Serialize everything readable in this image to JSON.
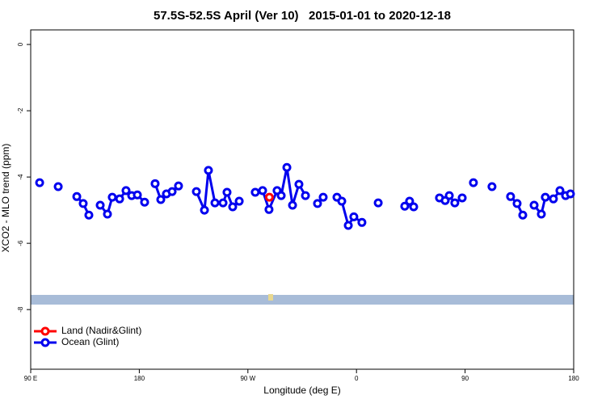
{
  "chart_data": {
    "type": "line",
    "title": "57.5S-52.5S April (Ver 10)   2015-01-01 to 2020-12-18",
    "x_label": "Longitude (deg E)",
    "y_label": "XCO2 - MLO trend (ppm)",
    "xlim": [
      90,
      540
    ],
    "xticks": [
      {
        "value": 90,
        "label": "90 E"
      },
      180,
      {
        "value": 270,
        "label": "90 W"
      },
      {
        "value": 360,
        "label": "0"
      },
      {
        "value": 450,
        "label": "90"
      },
      {
        "value": 540,
        "label": "180"
      }
    ],
    "ylim": [
      -9.8,
      0.44
    ],
    "yticks": [
      0,
      -2,
      -4,
      -6,
      -8
    ],
    "legend": "bottom-left",
    "series": [
      {
        "name": "Land (Nadir&Glint)",
        "color": "#ff0000",
        "x": [
          287.8
        ],
        "values": [
          -4.61
        ]
      },
      {
        "name": "Ocean (Glint)",
        "color": "#0000ee",
        "x": [
          97.4,
          null,
          112.8,
          null,
          128.2,
          133.5,
          138.2,
          null,
          147.6,
          153.6,
          157.6,
          163.7,
          169.0,
          173.7,
          178.4,
          184.4,
          null,
          193.1,
          197.8,
          202.5,
          207.2,
          212.5,
          null,
          227.3,
          234.0,
          237.3,
          242.7,
          249.4,
          252.7,
          257.4,
          262.8,
          null,
          276.1,
          282.2,
          287.5,
          294.2,
          297.6,
          302.3,
          307.0,
          312.3,
          317.7,
          null,
          327.7,
          332.4,
          null,
          343.8,
          347.8,
          353.2,
          357.8,
          364.5,
          null,
          378.0,
          null,
          400.0,
          404.0,
          407.4,
          null,
          428.8,
          433.5,
          436.9,
          441.5,
          447.6,
          null,
          456.9,
          null,
          472.3,
          null,
          487.7,
          493.1,
          497.8,
          null,
          507.2,
          513.2,
          516.5,
          523.2,
          528.6,
          533.3,
          537.3
        ],
        "values": [
          -4.17,
          null,
          -4.29,
          null,
          -4.59,
          -4.8,
          -5.15,
          null,
          -4.85,
          -5.12,
          -4.61,
          -4.66,
          -4.41,
          -4.56,
          -4.54,
          -4.76,
          null,
          -4.2,
          -4.68,
          -4.51,
          -4.44,
          -4.27,
          null,
          -4.44,
          -5.0,
          -3.8,
          -4.78,
          -4.78,
          -4.46,
          -4.9,
          -4.73,
          null,
          -4.46,
          -4.41,
          -4.98,
          -4.41,
          -4.56,
          -3.71,
          -4.85,
          -4.22,
          -4.56,
          null,
          -4.8,
          -4.61,
          null,
          -4.61,
          -4.73,
          -5.46,
          -5.2,
          -5.37,
          null,
          -4.78,
          null,
          -4.88,
          -4.73,
          -4.9,
          null,
          -4.63,
          -4.71,
          -4.56,
          -4.78,
          -4.63,
          null,
          -4.17,
          null,
          -4.29,
          null,
          -4.59,
          -4.8,
          -5.15,
          null,
          -4.85,
          -5.12,
          -4.61,
          -4.66,
          -4.41,
          -4.56,
          -4.51
        ]
      }
    ]
  }
}
